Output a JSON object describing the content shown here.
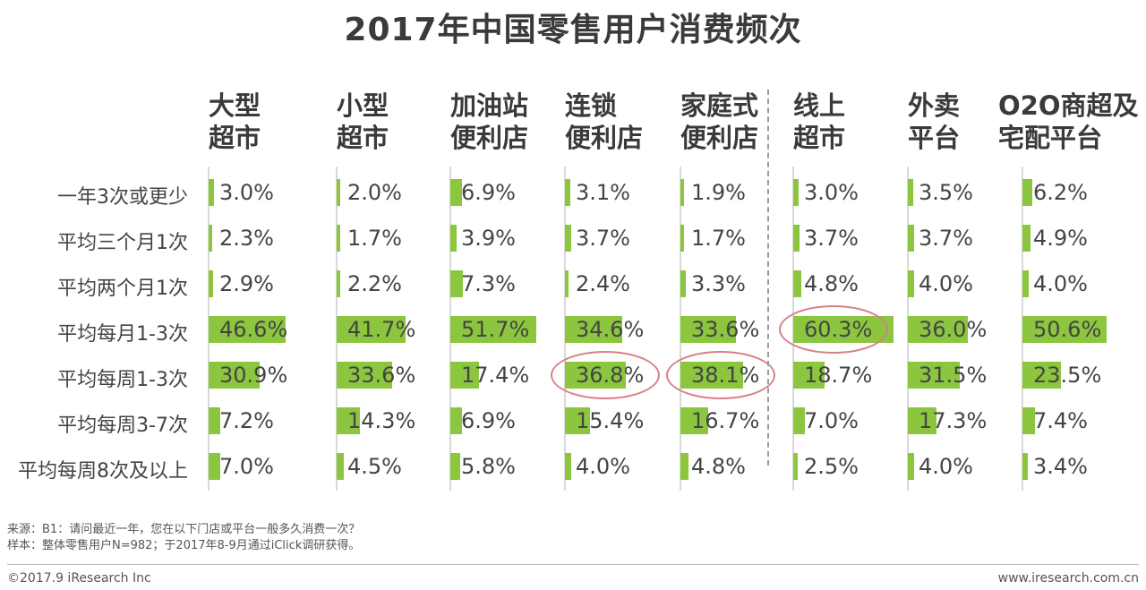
{
  "chart_data": {
    "type": "bar",
    "title": "2017年中国零售用户消费频次",
    "categories": [
      "一年3次或更少",
      "平均三个月1次",
      "平均两个月1次",
      "平均每月1-3次",
      "平均每周1-3次",
      "平均每周3-7次",
      "平均每周8次及以上"
    ],
    "series": [
      {
        "name": "大型超市",
        "lines": [
          "大型",
          "超市"
        ],
        "values": [
          3.0,
          2.3,
          2.9,
          46.6,
          30.9,
          7.2,
          7.0
        ],
        "labels": [
          "3.0%",
          "2.3%",
          "2.9%",
          "46.6%",
          "30.9%",
          "7.2%",
          "7.0%"
        ]
      },
      {
        "name": "小型超市",
        "lines": [
          "小型",
          "超市"
        ],
        "values": [
          2.0,
          1.7,
          2.2,
          41.7,
          33.6,
          14.3,
          4.5
        ],
        "labels": [
          "2.0%",
          "1.7%",
          "2.2%",
          "41.7%",
          "33.6%",
          "14.3%",
          "4.5%"
        ]
      },
      {
        "name": "加油站便利店",
        "lines": [
          "加油站",
          "便利店"
        ],
        "values": [
          6.9,
          3.9,
          7.3,
          51.7,
          17.4,
          6.9,
          5.8
        ],
        "labels": [
          "6.9%",
          "3.9%",
          "7.3%",
          "51.7%",
          "17.4%",
          "6.9%",
          "5.8%"
        ]
      },
      {
        "name": "连锁便利店",
        "lines": [
          "连锁",
          "便利店"
        ],
        "values": [
          3.1,
          3.7,
          2.4,
          34.6,
          36.8,
          15.4,
          4.0
        ],
        "labels": [
          "3.1%",
          "3.7%",
          "2.4%",
          "34.6%",
          "36.8%",
          "15.4%",
          "4.0%"
        ]
      },
      {
        "name": "家庭式便利店",
        "lines": [
          "家庭式",
          "便利店"
        ],
        "values": [
          1.9,
          1.7,
          3.3,
          33.6,
          38.1,
          16.7,
          4.8
        ],
        "labels": [
          "1.9%",
          "1.7%",
          "3.3%",
          "33.6%",
          "38.1%",
          "16.7%",
          "4.8%"
        ]
      },
      {
        "name": "线上超市",
        "lines": [
          "线上",
          "超市"
        ],
        "values": [
          3.0,
          3.7,
          4.8,
          60.3,
          18.7,
          7.0,
          2.5
        ],
        "labels": [
          "3.0%",
          "3.7%",
          "4.8%",
          "60.3%",
          "18.7%",
          "7.0%",
          "2.5%"
        ]
      },
      {
        "name": "外卖平台",
        "lines": [
          "外卖",
          "平台"
        ],
        "values": [
          3.5,
          3.7,
          4.0,
          36.0,
          31.5,
          17.3,
          4.0
        ],
        "labels": [
          "3.5%",
          "3.7%",
          "4.0%",
          "36.0%",
          "31.5%",
          "17.3%",
          "4.0%"
        ]
      },
      {
        "name": "O2O商超及宅配平台",
        "lines": [
          "O2O商超及",
          "宅配平台"
        ],
        "values": [
          6.2,
          4.9,
          4.0,
          50.6,
          23.5,
          7.4,
          3.4
        ],
        "labels": [
          "6.2%",
          "4.9%",
          "4.0%",
          "50.6%",
          "23.5%",
          "7.4%",
          "3.4%"
        ]
      }
    ],
    "highlighted": [
      {
        "series": 5,
        "category": 3
      },
      {
        "series": 3,
        "category": 4
      },
      {
        "series": 4,
        "category": 4
      }
    ],
    "bar_color": "#8cc63f",
    "highlight_color": "#d8808a",
    "divider_color": "#9a9a9a"
  },
  "notes": {
    "source": "来源：B1：请问最近一年，您在以下门店或平台一般多久消费一次？",
    "sample": "样本：整体零售用户N=982；于2017年8-9月通过iClick调研获得。"
  },
  "footer": {
    "copyright": "©2017.9 iResearch Inc",
    "website": "www.iresearch.com.cn"
  }
}
